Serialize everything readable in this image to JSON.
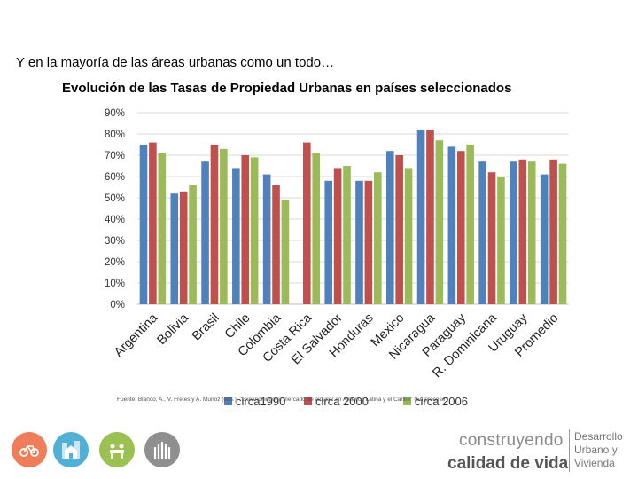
{
  "slide": {
    "intro": "Y en la mayoría de las áreas urbanas como un todo…",
    "source": "Fuente: Blanco, A., V. Fretes y A. Munoz (eds.). \"Expandiendo el mercado de alquiler en America Latina y el Caribe\" (En proceso )",
    "brand_line1": "construyendo",
    "brand_line2": "calidad de vida",
    "brand_side": [
      "Desarrollo",
      "Urbano y",
      "Vivienda"
    ],
    "logos": [
      "bicycle-icon",
      "building-icon",
      "house-icon",
      "people-icon",
      "hands-icon"
    ]
  },
  "chart_data": {
    "type": "bar",
    "title": "Evolución de las Tasas de Propiedad Urbanas en países seleccionados",
    "categories": [
      "Argentina",
      "Bolivia",
      "Brasil",
      "Chile",
      "Colombia",
      "Costa Rica",
      "El Salvador",
      "Honduras",
      "Mexico",
      "Nicaragua",
      "Paraguay",
      "R. Dominicana",
      "Uruguay",
      "Promedio"
    ],
    "series": [
      {
        "name": "circa1990",
        "color": "#4f81bd",
        "values": [
          75,
          52,
          67,
          64,
          61,
          null,
          58,
          58,
          72,
          82,
          74,
          67,
          67,
          61
        ]
      },
      {
        "name": "circa 2000",
        "color": "#c0504d",
        "values": [
          76,
          53,
          75,
          70,
          56,
          76,
          64,
          58,
          70,
          82,
          72,
          62,
          68,
          68
        ]
      },
      {
        "name": "circa 2006",
        "color": "#9bbb59",
        "values": [
          71,
          56,
          73,
          69,
          49,
          71,
          65,
          62,
          64,
          77,
          75,
          60,
          67,
          66
        ]
      }
    ],
    "ylim": [
      0,
      90
    ],
    "yticks": [
      0,
      10,
      20,
      30,
      40,
      50,
      60,
      70,
      80,
      90
    ],
    "ytick_format": "percent",
    "grid": true,
    "legend": "bottom"
  }
}
